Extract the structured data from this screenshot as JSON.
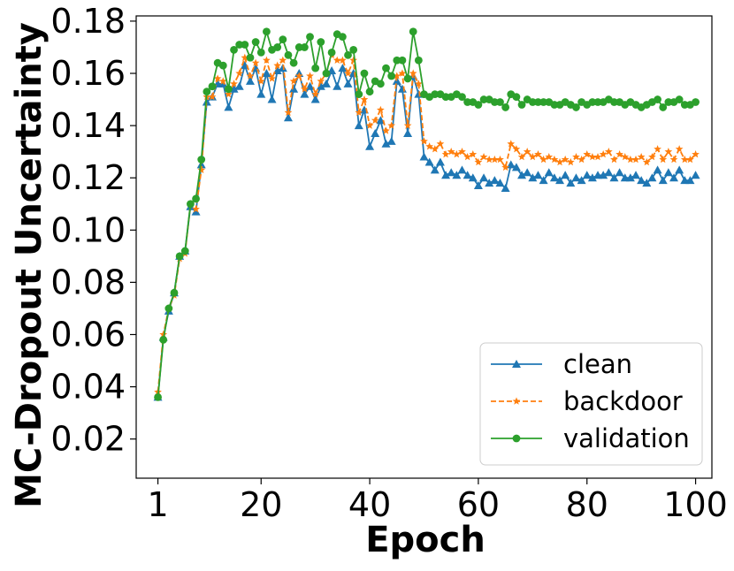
{
  "chart_data": {
    "type": "line",
    "xlabel": "Epoch",
    "ylabel": "MC-Dropout Uncertainty",
    "xlim": [
      -3,
      103
    ],
    "ylim": [
      0.005,
      0.182
    ],
    "xticks": [
      1,
      20,
      40,
      60,
      80,
      100
    ],
    "xtick_labels": [
      "1",
      "20",
      "40",
      "60",
      "80",
      "100"
    ],
    "yticks": [
      0.02,
      0.04,
      0.06,
      0.08,
      0.1,
      0.12,
      0.14,
      0.16,
      0.18
    ],
    "ytick_labels": [
      "0.02",
      "0.04",
      "0.06",
      "0.08",
      "0.10",
      "0.12",
      "0.14",
      "0.16",
      "0.18"
    ],
    "grid": false,
    "legend_position": "lower-right",
    "x": [
      1,
      2,
      3,
      4,
      5,
      6,
      7,
      8,
      9,
      10,
      11,
      12,
      13,
      14,
      15,
      16,
      17,
      18,
      19,
      20,
      21,
      22,
      23,
      24,
      25,
      26,
      27,
      28,
      29,
      30,
      31,
      32,
      33,
      34,
      35,
      36,
      37,
      38,
      39,
      40,
      41,
      42,
      43,
      44,
      45,
      46,
      47,
      48,
      49,
      50,
      51,
      52,
      53,
      54,
      55,
      56,
      57,
      58,
      59,
      60,
      61,
      62,
      63,
      64,
      65,
      66,
      67,
      68,
      69,
      70,
      71,
      72,
      73,
      74,
      75,
      76,
      77,
      78,
      79,
      80,
      81,
      82,
      83,
      84,
      85,
      86,
      87,
      88,
      89,
      90,
      91,
      92,
      93,
      94,
      95,
      96,
      97,
      98,
      99,
      100
    ],
    "series": [
      {
        "name": "clean",
        "color": "#1f77b4",
        "marker": "triangle",
        "dash": "solid",
        "values": [
          0.036,
          0.059,
          0.069,
          0.076,
          0.09,
          0.092,
          0.109,
          0.107,
          0.125,
          0.149,
          0.151,
          0.156,
          0.156,
          0.147,
          0.154,
          0.155,
          0.163,
          0.157,
          0.162,
          0.152,
          0.16,
          0.15,
          0.161,
          0.162,
          0.143,
          0.154,
          0.16,
          0.152,
          0.155,
          0.15,
          0.155,
          0.156,
          0.161,
          0.155,
          0.162,
          0.156,
          0.16,
          0.14,
          0.146,
          0.132,
          0.137,
          0.142,
          0.133,
          0.134,
          0.157,
          0.154,
          0.137,
          0.159,
          0.152,
          0.128,
          0.126,
          0.123,
          0.126,
          0.121,
          0.122,
          0.121,
          0.123,
          0.121,
          0.12,
          0.117,
          0.12,
          0.118,
          0.119,
          0.118,
          0.116,
          0.125,
          0.124,
          0.121,
          0.122,
          0.12,
          0.121,
          0.119,
          0.122,
          0.12,
          0.119,
          0.121,
          0.118,
          0.12,
          0.119,
          0.121,
          0.12,
          0.121,
          0.121,
          0.122,
          0.12,
          0.122,
          0.12,
          0.12,
          0.121,
          0.119,
          0.118,
          0.12,
          0.123,
          0.119,
          0.122,
          0.12,
          0.123,
          0.119,
          0.119,
          0.121
        ]
      },
      {
        "name": "backdoor",
        "color": "#ff7f0e",
        "marker": "star",
        "dash": "dashed",
        "values": [
          0.038,
          0.06,
          0.07,
          0.075,
          0.089,
          0.091,
          0.11,
          0.108,
          0.123,
          0.151,
          0.151,
          0.158,
          0.157,
          0.152,
          0.156,
          0.16,
          0.166,
          0.159,
          0.164,
          0.157,
          0.165,
          0.158,
          0.163,
          0.165,
          0.145,
          0.157,
          0.159,
          0.154,
          0.159,
          0.152,
          0.157,
          0.16,
          0.167,
          0.165,
          0.165,
          0.16,
          0.165,
          0.145,
          0.15,
          0.14,
          0.142,
          0.146,
          0.138,
          0.14,
          0.159,
          0.16,
          0.14,
          0.16,
          0.156,
          0.134,
          0.132,
          0.131,
          0.133,
          0.129,
          0.13,
          0.129,
          0.13,
          0.128,
          0.129,
          0.126,
          0.128,
          0.127,
          0.127,
          0.127,
          0.124,
          0.133,
          0.131,
          0.128,
          0.13,
          0.128,
          0.129,
          0.127,
          0.128,
          0.127,
          0.126,
          0.127,
          0.126,
          0.128,
          0.127,
          0.129,
          0.128,
          0.128,
          0.129,
          0.13,
          0.127,
          0.129,
          0.128,
          0.127,
          0.127,
          0.128,
          0.126,
          0.128,
          0.131,
          0.127,
          0.13,
          0.127,
          0.131,
          0.127,
          0.127,
          0.129
        ]
      },
      {
        "name": "validation",
        "color": "#2ca02c",
        "marker": "circle",
        "dash": "solid",
        "values": [
          0.036,
          0.058,
          0.07,
          0.076,
          0.09,
          0.092,
          0.11,
          0.112,
          0.127,
          0.153,
          0.155,
          0.164,
          0.163,
          0.154,
          0.169,
          0.171,
          0.171,
          0.166,
          0.172,
          0.168,
          0.176,
          0.169,
          0.17,
          0.173,
          0.167,
          0.164,
          0.17,
          0.17,
          0.174,
          0.162,
          0.172,
          0.16,
          0.168,
          0.175,
          0.174,
          0.167,
          0.169,
          0.152,
          0.16,
          0.153,
          0.157,
          0.156,
          0.162,
          0.159,
          0.165,
          0.165,
          0.158,
          0.176,
          0.165,
          0.152,
          0.151,
          0.152,
          0.152,
          0.151,
          0.151,
          0.152,
          0.151,
          0.149,
          0.149,
          0.148,
          0.15,
          0.15,
          0.149,
          0.149,
          0.147,
          0.152,
          0.151,
          0.148,
          0.15,
          0.149,
          0.149,
          0.149,
          0.149,
          0.148,
          0.148,
          0.149,
          0.148,
          0.147,
          0.149,
          0.148,
          0.149,
          0.149,
          0.149,
          0.15,
          0.149,
          0.149,
          0.148,
          0.149,
          0.148,
          0.147,
          0.148,
          0.149,
          0.15,
          0.147,
          0.149,
          0.149,
          0.15,
          0.148,
          0.148,
          0.149
        ]
      }
    ]
  }
}
